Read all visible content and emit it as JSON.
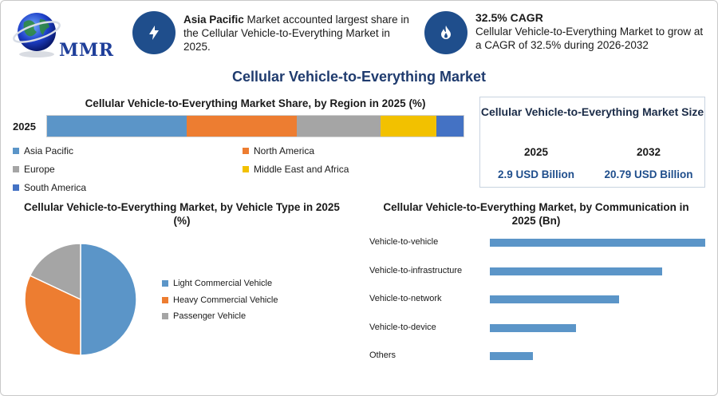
{
  "logo": {
    "text": "MMR"
  },
  "header": {
    "region_bold": "Asia Pacific",
    "region_text": " Market accounted largest share in the Cellular Vehicle-to-Everything Market in 2025.",
    "cagr_title": "32.5% CAGR",
    "cagr_text": "Cellular Vehicle-to-Everything Market to grow at a CAGR of 32.5% during 2026-2032"
  },
  "main_title": "Cellular Vehicle-to-Everything Market",
  "colors": {
    "asia_pacific": "#5b95c8",
    "north_america": "#ed7d31",
    "europe": "#a5a5a5",
    "middle_east_africa": "#f2c100",
    "south_america": "#4472c4",
    "accent": "#1f4e8c"
  },
  "region_chart": {
    "title": "Cellular Vehicle-to-Everything Market Share, by Region in 2025 (%)",
    "year_label": "2025"
  },
  "size_box": {
    "title": "Cellular Vehicle-to-Everything Market Size",
    "year1": "2025",
    "value1": "2.9 USD Billion",
    "year2": "2032",
    "value2": "20.79 USD Billion"
  },
  "vehicle_chart": {
    "title": "Cellular Vehicle-to-Everything Market, by Vehicle Type in 2025 (%)"
  },
  "comm_chart": {
    "title": "Cellular Vehicle-to-Everything Market, by Communication in 2025 (Bn)"
  },
  "chart_data": [
    {
      "type": "bar",
      "orientation": "horizontal-stacked",
      "categories": [
        "2025"
      ],
      "series": [
        {
          "name": "Asia Pacific",
          "values": [
            33.5
          ]
        },
        {
          "name": "North America",
          "values": [
            26.5
          ]
        },
        {
          "name": "Europe",
          "values": [
            20
          ]
        },
        {
          "name": "Middle East and Africa",
          "values": [
            13.5
          ]
        },
        {
          "name": "South America",
          "values": [
            6.5
          ]
        }
      ],
      "title": "Cellular Vehicle-to-Everything Market Share, by Region in 2025 (%)",
      "legend": "bottom"
    },
    {
      "type": "pie",
      "categories": [
        "Light Commercial Vehicle",
        "Heavy Commercial Vehicle",
        "Passenger Vehicle"
      ],
      "values": [
        50,
        32,
        18
      ],
      "title": "Cellular Vehicle-to-Everything Market, by Vehicle Type in 2025 (%)",
      "legend": "right"
    },
    {
      "type": "bar",
      "orientation": "horizontal",
      "categories": [
        "Vehicle-to-vehicle",
        "Vehicle-to-infrastructure",
        "Vehicle-to-network",
        "Vehicle-to-device",
        "Others"
      ],
      "values": [
        1.0,
        0.8,
        0.6,
        0.4,
        0.2
      ],
      "title": "Cellular Vehicle-to-Everything Market, by Communication in 2025 (Bn)",
      "grid": false
    }
  ]
}
